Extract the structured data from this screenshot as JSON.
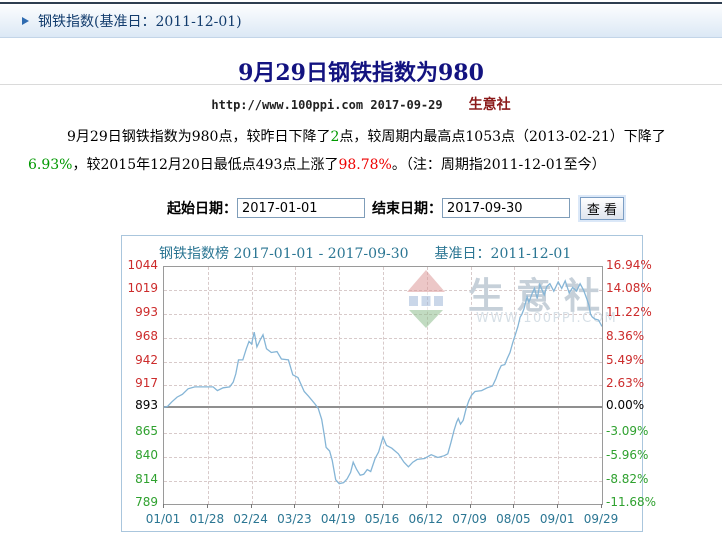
{
  "header": {
    "bar_title": "钢铁指数(基准日：2011-12-01)"
  },
  "article": {
    "title": "9月29日钢铁指数为980",
    "source_url": "http://www.100ppi.com",
    "pub_date": "2017-09-29",
    "brand": "生意社",
    "paragraph": {
      "seg1": "9月29日钢铁指数为980点，较昨日下降了",
      "seg2": "2",
      "seg3": "点，较周期内最高点1053点（2013-02-21）下降了",
      "seg4": "6.93%",
      "seg5": "，较2015年12月20日最低点493点上涨了",
      "seg6": "98.78%",
      "seg7": "。（注：周期指2011-12-01至今）"
    }
  },
  "form": {
    "start_label": "起始日期：",
    "start_value": "2017-01-01",
    "end_label": "结束日期：",
    "end_value": "2017-09-30",
    "submit_label": "查 看"
  },
  "chart_data": {
    "type": "line",
    "title": "钢铁指数榜 2017-01-01 - 2017-09-30",
    "base_label": "基准日：2011-12-01",
    "x_ticks": [
      "01/01",
      "01/28",
      "02/24",
      "03/23",
      "04/19",
      "05/16",
      "06/12",
      "07/09",
      "08/05",
      "09/01",
      "09/29"
    ],
    "y_axis": [
      {
        "value": 1044,
        "pct": "16.94%"
      },
      {
        "value": 1019,
        "pct": "14.08%"
      },
      {
        "value": 993,
        "pct": "11.22%"
      },
      {
        "value": 968,
        "pct": "8.36%"
      },
      {
        "value": 942,
        "pct": "5.49%"
      },
      {
        "value": 917,
        "pct": "2.63%"
      },
      {
        "value": 893,
        "pct": "0.00%"
      },
      {
        "value": 865,
        "pct": "-3.09%"
      },
      {
        "value": 840,
        "pct": "-5.96%"
      },
      {
        "value": 814,
        "pct": "-8.82%"
      },
      {
        "value": 789,
        "pct": "-11.68%"
      }
    ],
    "ylim": [
      789,
      1044
    ],
    "base_value": 893,
    "legend_position": "none",
    "grid": true,
    "series": [
      {
        "name": "钢铁指数",
        "points": [
          [
            0,
            893
          ],
          [
            0.08,
            894
          ],
          [
            0.18,
            899
          ],
          [
            0.3,
            904
          ],
          [
            0.42,
            907
          ],
          [
            0.55,
            913
          ],
          [
            0.7,
            915
          ],
          [
            1.0,
            915
          ],
          [
            1.12,
            915
          ],
          [
            1.22,
            911
          ],
          [
            1.35,
            914
          ],
          [
            1.5,
            915
          ],
          [
            1.58,
            920
          ],
          [
            1.64,
            929
          ],
          [
            1.7,
            944
          ],
          [
            1.8,
            944
          ],
          [
            1.88,
            956
          ],
          [
            1.94,
            964
          ],
          [
            2.0,
            961
          ],
          [
            2.06,
            974
          ],
          [
            2.12,
            958
          ],
          [
            2.2,
            966
          ],
          [
            2.26,
            971
          ],
          [
            2.34,
            956
          ],
          [
            2.45,
            952
          ],
          [
            2.58,
            953
          ],
          [
            2.68,
            945
          ],
          [
            2.84,
            944
          ],
          [
            2.94,
            928
          ],
          [
            3.06,
            925
          ],
          [
            3.2,
            910
          ],
          [
            3.3,
            905
          ],
          [
            3.44,
            897
          ],
          [
            3.52,
            892
          ],
          [
            3.6,
            880
          ],
          [
            3.66,
            863
          ],
          [
            3.7,
            850
          ],
          [
            3.78,
            846
          ],
          [
            3.84,
            836
          ],
          [
            3.92,
            815
          ],
          [
            4.0,
            811
          ],
          [
            4.1,
            812
          ],
          [
            4.18,
            816
          ],
          [
            4.26,
            823
          ],
          [
            4.32,
            834
          ],
          [
            4.4,
            826
          ],
          [
            4.48,
            820
          ],
          [
            4.56,
            821
          ],
          [
            4.64,
            826
          ],
          [
            4.72,
            824
          ],
          [
            4.82,
            838
          ],
          [
            4.9,
            845
          ],
          [
            5.0,
            861
          ],
          [
            5.08,
            852
          ],
          [
            5.2,
            849
          ],
          [
            5.35,
            843
          ],
          [
            5.48,
            834
          ],
          [
            5.58,
            829
          ],
          [
            5.68,
            834
          ],
          [
            5.78,
            837
          ],
          [
            5.95,
            838
          ],
          [
            6.1,
            842
          ],
          [
            6.25,
            839
          ],
          [
            6.4,
            841
          ],
          [
            6.48,
            843
          ],
          [
            6.55,
            855
          ],
          [
            6.62,
            868
          ],
          [
            6.68,
            877
          ],
          [
            6.72,
            881
          ],
          [
            6.77,
            875
          ],
          [
            6.83,
            879
          ],
          [
            6.9,
            892
          ],
          [
            6.96,
            900
          ],
          [
            7.02,
            906
          ],
          [
            7.1,
            910
          ],
          [
            7.25,
            911
          ],
          [
            7.38,
            914
          ],
          [
            7.5,
            916
          ],
          [
            7.58,
            924
          ],
          [
            7.64,
            932
          ],
          [
            7.7,
            938
          ],
          [
            7.78,
            939
          ],
          [
            7.84,
            946
          ],
          [
            7.9,
            952
          ],
          [
            7.96,
            962
          ],
          [
            8.02,
            971
          ],
          [
            8.08,
            980
          ],
          [
            8.13,
            990
          ],
          [
            8.17,
            993
          ],
          [
            8.22,
            999
          ],
          [
            8.29,
            1012
          ],
          [
            8.33,
            1006
          ],
          [
            8.4,
            1015
          ],
          [
            8.46,
            1021
          ],
          [
            8.52,
            1010
          ],
          [
            8.58,
            1025
          ],
          [
            8.68,
            1014
          ],
          [
            8.74,
            1023
          ],
          [
            8.81,
            1026
          ],
          [
            8.9,
            1018
          ],
          [
            9.0,
            1028
          ],
          [
            9.08,
            1021
          ],
          [
            9.16,
            1029
          ],
          [
            9.25,
            1016
          ],
          [
            9.33,
            1022
          ],
          [
            9.42,
            1018
          ],
          [
            9.5,
            1026
          ],
          [
            9.58,
            1019
          ],
          [
            9.65,
            1010
          ],
          [
            9.7,
            1003
          ],
          [
            9.74,
            993
          ],
          [
            9.78,
            990
          ],
          [
            9.84,
            988
          ],
          [
            9.92,
            987
          ],
          [
            10,
            980
          ]
        ]
      }
    ],
    "watermark": {
      "brand": "生意社",
      "url": "WWW.100PPI.COM"
    }
  }
}
